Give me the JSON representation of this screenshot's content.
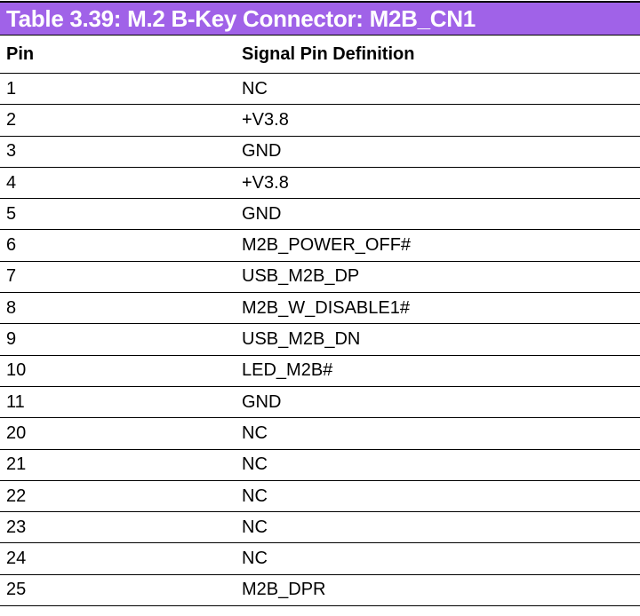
{
  "title": "Table 3.39: M.2 B-Key Connector: M2B_CN1",
  "header_color": "#a062e8",
  "columns": [
    "Pin",
    "Signal Pin Definition"
  ],
  "rows": [
    [
      "1",
      "NC"
    ],
    [
      "2",
      "+V3.8"
    ],
    [
      "3",
      "GND"
    ],
    [
      "4",
      "+V3.8"
    ],
    [
      "5",
      "GND"
    ],
    [
      "6",
      "M2B_POWER_OFF#"
    ],
    [
      "7",
      "USB_M2B_DP"
    ],
    [
      "8",
      "M2B_W_DISABLE1#"
    ],
    [
      "9",
      "USB_M2B_DN"
    ],
    [
      "10",
      "LED_M2B#"
    ],
    [
      "11",
      "GND"
    ],
    [
      "20",
      "NC"
    ],
    [
      "21",
      "NC"
    ],
    [
      "22",
      "NC"
    ],
    [
      "23",
      "NC"
    ],
    [
      "24",
      "NC"
    ],
    [
      "25",
      "M2B_DPR"
    ]
  ]
}
